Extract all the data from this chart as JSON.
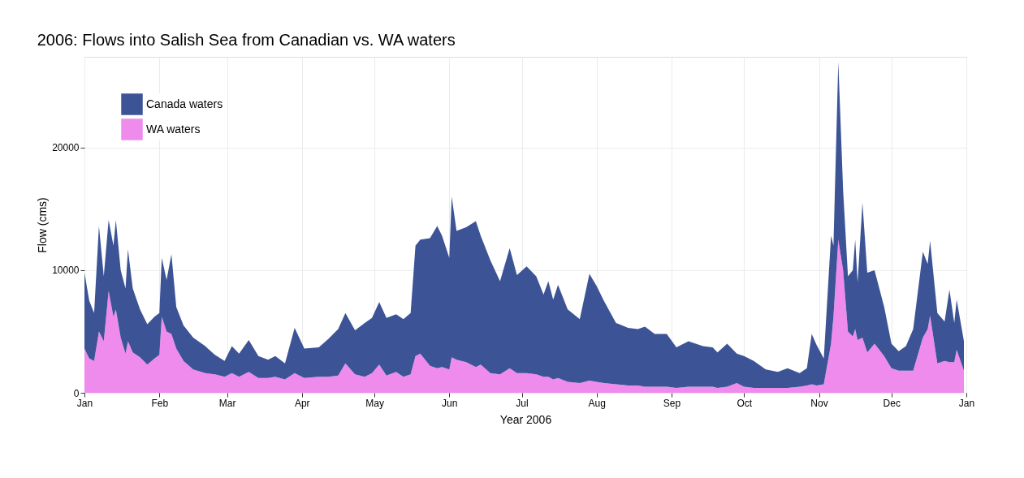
{
  "chart_data": {
    "type": "area",
    "stacked": true,
    "title": "2006: Flows into Salish Sea from Canadian vs. WA waters",
    "xlabel": "Year 2006",
    "ylabel": "Flow (cms)",
    "x": [
      "2006-01-01",
      "2006-01-03",
      "2006-01-05",
      "2006-01-07",
      "2006-01-09",
      "2006-01-11",
      "2006-01-13",
      "2006-01-14",
      "2006-01-16",
      "2006-01-18",
      "2006-01-19",
      "2006-01-21",
      "2006-01-24",
      "2006-01-27",
      "2006-01-30",
      "2006-02-01",
      "2006-02-02",
      "2006-02-04",
      "2006-02-06",
      "2006-02-08",
      "2006-02-11",
      "2006-02-15",
      "2006-02-20",
      "2006-02-24",
      "2006-02-28",
      "2006-03-03",
      "2006-03-06",
      "2006-03-10",
      "2006-03-14",
      "2006-03-18",
      "2006-03-21",
      "2006-03-25",
      "2006-03-29",
      "2006-04-02",
      "2006-04-08",
      "2006-04-12",
      "2006-04-16",
      "2006-04-19",
      "2006-04-23",
      "2006-04-27",
      "2006-04-30",
      "2006-05-03",
      "2006-05-06",
      "2006-05-10",
      "2006-05-13",
      "2006-05-16",
      "2006-05-18",
      "2006-05-20",
      "2006-05-24",
      "2006-05-27",
      "2006-05-29",
      "2006-06-01",
      "2006-06-02",
      "2006-06-04",
      "2006-06-08",
      "2006-06-12",
      "2006-06-14",
      "2006-06-18",
      "2006-06-22",
      "2006-06-26",
      "2006-06-29",
      "2006-07-03",
      "2006-07-07",
      "2006-07-10",
      "2006-07-12",
      "2006-07-14",
      "2006-07-16",
      "2006-07-20",
      "2006-07-25",
      "2006-07-29",
      "2006-08-01",
      "2006-08-04",
      "2006-08-09",
      "2006-08-14",
      "2006-08-18",
      "2006-08-21",
      "2006-08-25",
      "2006-08-30",
      "2006-09-03",
      "2006-09-08",
      "2006-09-14",
      "2006-09-18",
      "2006-09-20",
      "2006-09-24",
      "2006-09-28",
      "2006-10-01",
      "2006-10-05",
      "2006-10-10",
      "2006-10-15",
      "2006-10-19",
      "2006-10-24",
      "2006-10-27",
      "2006-10-29",
      "2006-10-31",
      "2006-11-03",
      "2006-11-06",
      "2006-11-07",
      "2006-11-09",
      "2006-11-11",
      "2006-11-13",
      "2006-11-15",
      "2006-11-16",
      "2006-11-17",
      "2006-11-19",
      "2006-11-21",
      "2006-11-24",
      "2006-11-28",
      "2006-12-01",
      "2006-12-04",
      "2006-12-07",
      "2006-12-10",
      "2006-12-14",
      "2006-12-16",
      "2006-12-17",
      "2006-12-20",
      "2006-12-23",
      "2006-12-25",
      "2006-12-27",
      "2006-12-28",
      "2006-12-31"
    ],
    "series": [
      {
        "name": "WA waters",
        "color": "#ee8bed",
        "values": [
          3600,
          2800,
          2600,
          5000,
          4200,
          8300,
          6200,
          6800,
          4500,
          3200,
          4200,
          3300,
          2900,
          2300,
          2800,
          3100,
          6200,
          5000,
          4800,
          3600,
          2600,
          1900,
          1600,
          1500,
          1300,
          1600,
          1300,
          1700,
          1200,
          1200,
          1300,
          1100,
          1600,
          1200,
          1300,
          1300,
          1400,
          2400,
          1500,
          1300,
          1600,
          2300,
          1400,
          1700,
          1300,
          1500,
          3000,
          3200,
          2200,
          2000,
          2100,
          1900,
          2900,
          2700,
          2500,
          2100,
          2300,
          1600,
          1500,
          2000,
          1600,
          1600,
          1500,
          1300,
          1300,
          1100,
          1200,
          900,
          800,
          1000,
          900,
          800,
          700,
          600,
          600,
          500,
          500,
          500,
          400,
          500,
          500,
          500,
          400,
          500,
          800,
          500,
          400,
          400,
          400,
          400,
          500,
          600,
          700,
          600,
          700,
          4000,
          6200,
          12500,
          10000,
          5000,
          4600,
          5200,
          4300,
          4500,
          3300,
          4000,
          3000,
          2000,
          1800,
          1800,
          1800,
          4500,
          5200,
          6300,
          2400,
          2600,
          2500,
          2500,
          3500,
          1800
        ]
      },
      {
        "name": "Canada waters",
        "color": "#3c5396",
        "values": [
          6200,
          4700,
          3900,
          8600,
          5300,
          5800,
          5800,
          7300,
          5500,
          5300,
          7500,
          5200,
          3900,
          3300,
          3400,
          3400,
          4800,
          4200,
          6500,
          3400,
          2900,
          2600,
          2200,
          1600,
          1300,
          2200,
          1900,
          2600,
          1800,
          1500,
          1700,
          1300,
          3700,
          2400,
          2400,
          3100,
          3800,
          4100,
          3600,
          4400,
          4500,
          5100,
          4700,
          4700,
          4700,
          5000,
          9000,
          9300,
          10400,
          11600,
          10700,
          9100,
          13100,
          10500,
          11000,
          11900,
          10500,
          9200,
          7600,
          9800,
          8000,
          8700,
          8000,
          6700,
          7800,
          6500,
          7600,
          5900,
          5200,
          8700,
          7800,
          6700,
          5000,
          4700,
          4600,
          4900,
          4300,
          4300,
          3300,
          3700,
          3300,
          3200,
          2900,
          3500,
          2400,
          2500,
          2200,
          1500,
          1300,
          1600,
          1100,
          1400,
          4100,
          3300,
          2100,
          8800,
          5800,
          14500,
          6500,
          4500,
          5400,
          7300,
          4700,
          11000,
          6500,
          6000,
          4000,
          2000,
          1600,
          2000,
          3400,
          7000,
          5300,
          6100,
          4100,
          3200,
          5900,
          3200,
          4100,
          2400
        ]
      }
    ],
    "xlim": [
      "2006-01-01",
      "2007-01-01"
    ],
    "xticks": [
      {
        "value": "2006-01-01",
        "label": "Jan"
      },
      {
        "value": "2006-02-01",
        "label": "Feb"
      },
      {
        "value": "2006-03-01",
        "label": "Mar"
      },
      {
        "value": "2006-04-01",
        "label": "Apr"
      },
      {
        "value": "2006-05-01",
        "label": "May"
      },
      {
        "value": "2006-06-01",
        "label": "Jun"
      },
      {
        "value": "2006-07-01",
        "label": "Jul"
      },
      {
        "value": "2006-08-01",
        "label": "Aug"
      },
      {
        "value": "2006-09-01",
        "label": "Sep"
      },
      {
        "value": "2006-10-01",
        "label": "Oct"
      },
      {
        "value": "2006-11-01",
        "label": "Nov"
      },
      {
        "value": "2006-12-01",
        "label": "Dec"
      },
      {
        "value": "2007-01-01",
        "label": "Jan"
      }
    ],
    "ylim": [
      0,
      27400
    ],
    "yticks": [
      0,
      10000,
      20000
    ],
    "grid": true,
    "legend": "top left"
  }
}
